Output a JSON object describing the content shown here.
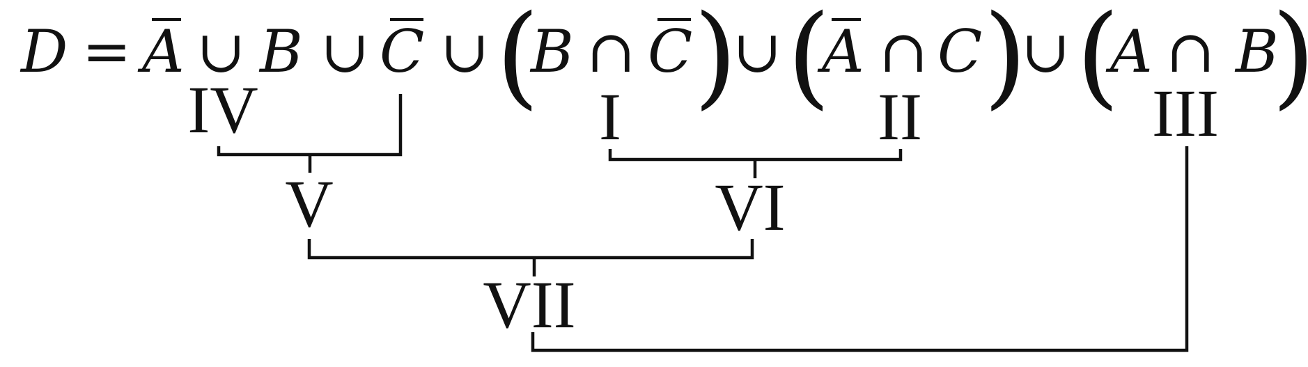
{
  "formula": {
    "lhs": "D",
    "equals": "=",
    "union": "∪",
    "intersection": "∩",
    "open_paren": "(",
    "close_paren": ")",
    "var_a": "A",
    "var_b": "B",
    "var_c": "C"
  },
  "labels": {
    "i": "I",
    "ii": "II",
    "iii": "III",
    "iv": "IV",
    "v": "V",
    "vi": "VI",
    "vii": "VII"
  }
}
